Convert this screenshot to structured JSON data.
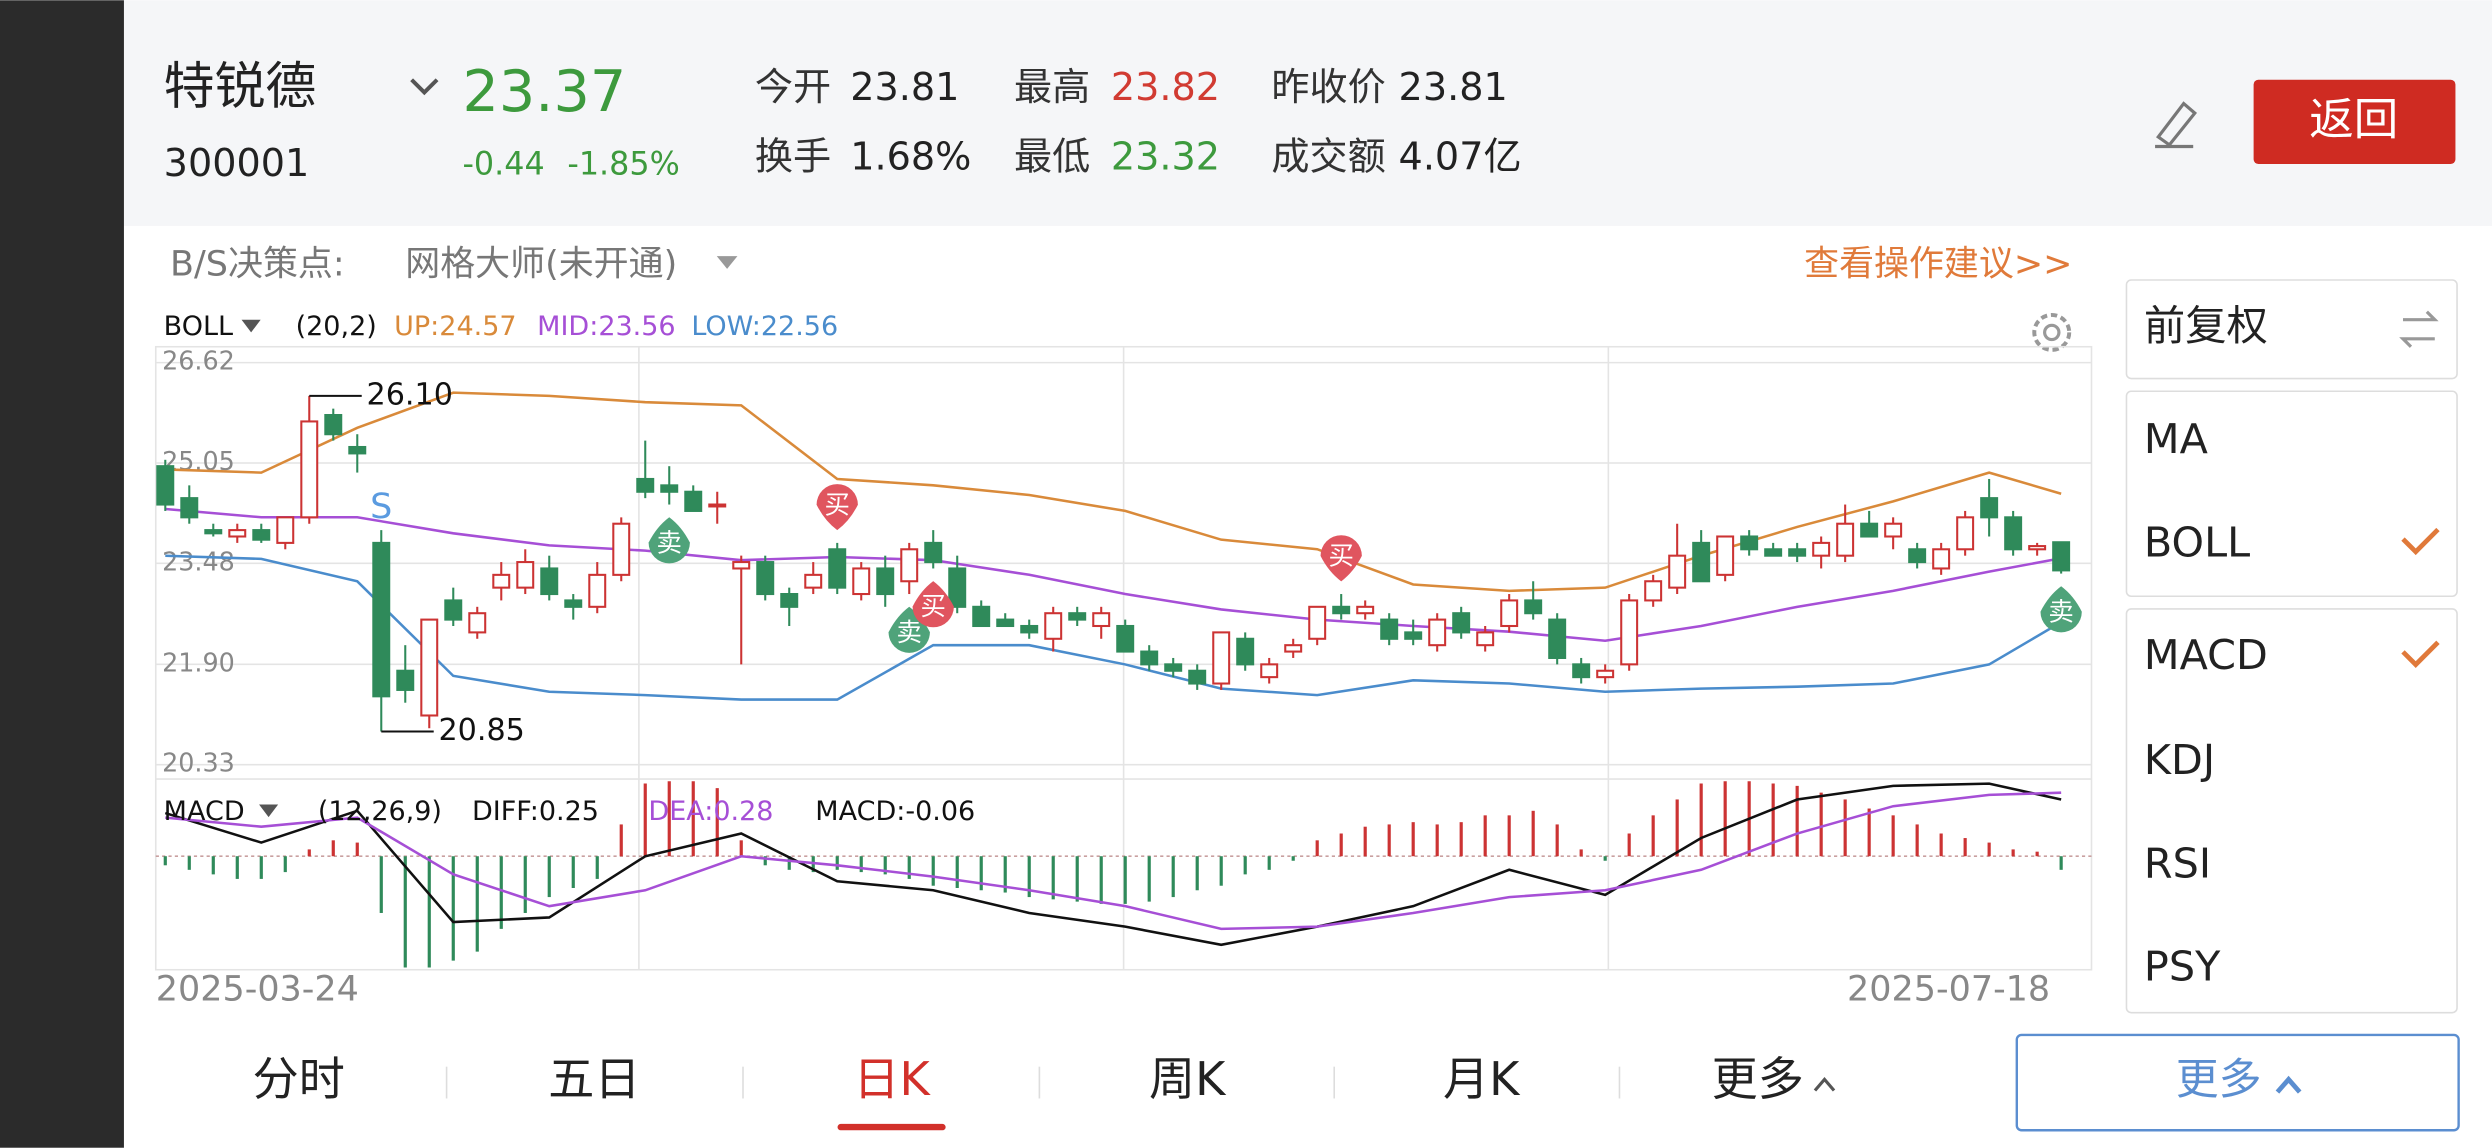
{
  "header": {
    "name": "特锐德",
    "code": "300001",
    "price": "23.37",
    "change": "-0.44",
    "change_pct": "-1.85%",
    "stats": [
      {
        "label": "今开",
        "value": "23.81",
        "color": "#222"
      },
      {
        "label": "换手",
        "value": "1.68%",
        "color": "#222"
      },
      {
        "label": "最高",
        "value": "23.82",
        "color": "#d13b32"
      },
      {
        "label": "最低",
        "value": "23.32",
        "color": "#3d9a3d"
      },
      {
        "label": "昨收价",
        "value": "23.81",
        "color": "#222"
      },
      {
        "label": "成交额",
        "value": "4.07亿",
        "color": "#222"
      }
    ],
    "back": "返回"
  },
  "chart_data": {
    "type": "candlestick",
    "decision_label": "B/S决策点:",
    "grid_master": "网格大师(未开通)",
    "advice": "查看操作建议>>",
    "indicator": {
      "name": "BOLL",
      "params": "(20,2)",
      "up": "UP:24.57",
      "mid": "MID:23.56",
      "low": "LOW:22.56"
    },
    "ylim": [
      20.33,
      26.62
    ],
    "yticks": [
      26.62,
      25.05,
      23.48,
      {
        "value": 21.9,
        "label": "21.90"
      },
      20.33
    ],
    "up_color": "#cc3333",
    "down_color": "#2f8a5a",
    "candles": [
      [
        25.0,
        25.1,
        24.3,
        24.4
      ],
      [
        24.5,
        24.7,
        24.1,
        24.2
      ],
      [
        24.0,
        24.1,
        23.9,
        23.95
      ],
      [
        23.9,
        24.1,
        23.8,
        24.0
      ],
      [
        24.0,
        24.1,
        23.8,
        23.85
      ],
      [
        23.8,
        24.2,
        23.7,
        24.2
      ],
      [
        24.2,
        26.1,
        24.1,
        25.7
      ],
      [
        25.8,
        25.9,
        25.4,
        25.5
      ],
      [
        25.3,
        25.5,
        24.9,
        25.2
      ],
      [
        23.8,
        24.0,
        20.85,
        21.4
      ],
      [
        21.8,
        22.2,
        21.3,
        21.5
      ],
      [
        21.1,
        22.6,
        20.9,
        22.6
      ],
      [
        22.9,
        23.1,
        22.5,
        22.6
      ],
      [
        22.4,
        22.8,
        22.3,
        22.7
      ],
      [
        23.1,
        23.5,
        22.9,
        23.3
      ],
      [
        23.1,
        23.7,
        23.0,
        23.5
      ],
      [
        23.4,
        23.6,
        22.9,
        23.0
      ],
      [
        22.9,
        23.0,
        22.6,
        22.8
      ],
      [
        22.8,
        23.5,
        22.7,
        23.3
      ],
      [
        23.3,
        24.2,
        23.2,
        24.1
      ],
      [
        24.8,
        25.4,
        24.5,
        24.6
      ],
      [
        24.7,
        25.0,
        24.4,
        24.6
      ],
      [
        24.6,
        24.7,
        24.3,
        24.3
      ],
      [
        24.4,
        24.6,
        24.1,
        24.4
      ],
      [
        23.4,
        23.6,
        21.9,
        23.5
      ],
      [
        23.5,
        23.6,
        22.9,
        23.0
      ],
      [
        23.0,
        23.1,
        22.5,
        22.8
      ],
      [
        23.1,
        23.5,
        23.0,
        23.3
      ],
      [
        23.7,
        23.8,
        23.0,
        23.1
      ],
      [
        23.0,
        23.5,
        22.9,
        23.4
      ],
      [
        23.4,
        23.6,
        22.8,
        23.0
      ],
      [
        23.2,
        23.8,
        23.0,
        23.7
      ],
      [
        23.8,
        24.0,
        23.4,
        23.5
      ],
      [
        23.4,
        23.6,
        22.7,
        22.8
      ],
      [
        22.8,
        22.9,
        22.5,
        22.5
      ],
      [
        22.6,
        22.7,
        22.5,
        22.5
      ],
      [
        22.5,
        22.6,
        22.3,
        22.4
      ],
      [
        22.3,
        22.8,
        22.1,
        22.7
      ],
      [
        22.7,
        22.8,
        22.5,
        22.6
      ],
      [
        22.5,
        22.8,
        22.3,
        22.7
      ],
      [
        22.5,
        22.6,
        22.1,
        22.1
      ],
      [
        22.1,
        22.2,
        21.8,
        21.9
      ],
      [
        21.9,
        22.0,
        21.7,
        21.8
      ],
      [
        21.8,
        21.9,
        21.5,
        21.6
      ],
      [
        21.6,
        22.4,
        21.5,
        22.4
      ],
      [
        22.3,
        22.4,
        21.8,
        21.9
      ],
      [
        21.7,
        22.0,
        21.6,
        21.9
      ],
      [
        22.1,
        22.3,
        22.0,
        22.2
      ],
      [
        22.3,
        22.8,
        22.2,
        22.8
      ],
      [
        22.8,
        23.0,
        22.6,
        22.7
      ],
      [
        22.7,
        22.9,
        22.6,
        22.8
      ],
      [
        22.6,
        22.7,
        22.2,
        22.3
      ],
      [
        22.4,
        22.6,
        22.2,
        22.3
      ],
      [
        22.2,
        22.7,
        22.1,
        22.6
      ],
      [
        22.7,
        22.8,
        22.3,
        22.4
      ],
      [
        22.2,
        22.5,
        22.1,
        22.4
      ],
      [
        22.5,
        23.0,
        22.4,
        22.9
      ],
      [
        22.9,
        23.2,
        22.6,
        22.7
      ],
      [
        22.6,
        22.7,
        21.9,
        22.0
      ],
      [
        21.9,
        22.0,
        21.6,
        21.7
      ],
      [
        21.7,
        21.9,
        21.6,
        21.8
      ],
      [
        21.9,
        23.0,
        21.8,
        22.9
      ],
      [
        22.9,
        23.3,
        22.8,
        23.2
      ],
      [
        23.1,
        24.1,
        23.0,
        23.6
      ],
      [
        23.8,
        24.0,
        23.2,
        23.2
      ],
      [
        23.3,
        23.9,
        23.2,
        23.9
      ],
      [
        23.9,
        24.0,
        23.6,
        23.7
      ],
      [
        23.7,
        23.8,
        23.6,
        23.6
      ],
      [
        23.7,
        23.8,
        23.5,
        23.6
      ],
      [
        23.6,
        23.9,
        23.4,
        23.8
      ],
      [
        23.6,
        24.4,
        23.5,
        24.1
      ],
      [
        24.1,
        24.3,
        23.9,
        23.9
      ],
      [
        23.9,
        24.2,
        23.7,
        24.1
      ],
      [
        23.7,
        23.8,
        23.4,
        23.5
      ],
      [
        23.4,
        23.8,
        23.3,
        23.7
      ],
      [
        23.7,
        24.3,
        23.6,
        24.2
      ],
      [
        24.5,
        24.8,
        23.9,
        24.2
      ],
      [
        24.2,
        24.3,
        23.6,
        23.7
      ],
      [
        23.7,
        23.8,
        23.6,
        23.75
      ],
      [
        23.81,
        23.82,
        23.32,
        23.37
      ]
    ],
    "boll": {
      "x": [
        0,
        4,
        8,
        12,
        16,
        20,
        24,
        28,
        32,
        36,
        40,
        44,
        48,
        52,
        56,
        60,
        64,
        68,
        72,
        76,
        79
      ],
      "series": [
        {
          "color": "#d98a3a",
          "values": [
            24.95,
            24.9,
            25.6,
            26.15,
            26.1,
            26.0,
            25.95,
            24.8,
            24.7,
            24.55,
            24.3,
            23.85,
            23.7,
            23.15,
            23.05,
            23.1,
            23.6,
            24.05,
            24.45,
            24.9,
            24.57
          ]
        },
        {
          "color": "#a64fd6",
          "values": [
            24.33,
            24.2,
            24.2,
            23.95,
            23.76,
            23.68,
            23.53,
            23.58,
            23.53,
            23.3,
            23.0,
            22.76,
            22.6,
            22.5,
            22.41,
            22.27,
            22.5,
            22.8,
            23.05,
            23.35,
            23.56
          ]
        },
        {
          "color": "#4a8ccc",
          "values": [
            23.6,
            23.55,
            23.2,
            21.72,
            21.47,
            21.42,
            21.35,
            21.35,
            22.2,
            22.2,
            21.9,
            21.52,
            21.42,
            21.65,
            21.6,
            21.47,
            21.52,
            21.55,
            21.6,
            21.9,
            22.56
          ]
        }
      ]
    },
    "annotations": [
      {
        "text": "26.10",
        "candle": 6,
        "at": "high"
      },
      {
        "text": "20.85",
        "candle": 9,
        "at": "low"
      }
    ],
    "signals": [
      {
        "index": 9,
        "text": "S",
        "color": "#5b9be0",
        "place": "above",
        "badge": false
      },
      {
        "index": 21,
        "text": "卖",
        "color": "#4fa37a",
        "place": "below",
        "badge": true
      },
      {
        "index": 28,
        "text": "买",
        "color": "#e0555f",
        "place": "above",
        "badge": true
      },
      {
        "index": 31,
        "text": "卖",
        "color": "#4fa37a",
        "place": "below",
        "badge": true
      },
      {
        "index": 32,
        "text": "买",
        "color": "#e0555f",
        "place": "below",
        "badge": true
      },
      {
        "index": 49,
        "text": "买",
        "color": "#e0555f",
        "place": "above",
        "badge": true
      },
      {
        "index": 79,
        "text": "卖",
        "color": "#4fa37a",
        "place": "below",
        "badge": true
      }
    ],
    "dates": [
      "2025-03-24",
      "2025-07-18"
    ],
    "macd": {
      "legend": {
        "name": "MACD",
        "params": "(12,26,9)",
        "diff": "DIFF:0.25",
        "dea": "DEA:0.28",
        "macd": "MACD:-0.06"
      },
      "ylim": [
        -0.5,
        0.34
      ],
      "hist": [
        -0.04,
        -0.06,
        -0.08,
        -0.1,
        -0.1,
        -0.07,
        0.03,
        0.07,
        0.06,
        -0.25,
        -0.49,
        -0.49,
        -0.46,
        -0.42,
        -0.32,
        -0.25,
        -0.18,
        -0.14,
        -0.1,
        0.14,
        0.32,
        0.33,
        0.33,
        0.3,
        0.07,
        -0.04,
        -0.06,
        -0.07,
        -0.06,
        -0.07,
        -0.08,
        -0.1,
        -0.13,
        -0.14,
        -0.15,
        -0.16,
        -0.18,
        -0.19,
        -0.2,
        -0.21,
        -0.21,
        -0.2,
        -0.18,
        -0.15,
        -0.13,
        -0.08,
        -0.06,
        -0.02,
        0.07,
        0.1,
        0.13,
        0.14,
        0.15,
        0.14,
        0.15,
        0.18,
        0.18,
        0.2,
        0.14,
        0.03,
        -0.02,
        0.1,
        0.18,
        0.25,
        0.32,
        0.33,
        0.33,
        0.32,
        0.31,
        0.28,
        0.25,
        0.21,
        0.18,
        0.14,
        0.1,
        0.08,
        0.06,
        0.03,
        0.02,
        -0.06
      ],
      "x": [
        0,
        4,
        8,
        12,
        16,
        20,
        24,
        28,
        32,
        36,
        40,
        44,
        48,
        52,
        56,
        60,
        64,
        68,
        72,
        76,
        79
      ],
      "series": [
        {
          "color": "#111111",
          "values": [
            0.19,
            0.06,
            0.2,
            -0.29,
            -0.27,
            0,
            0.1,
            -0.11,
            -0.15,
            -0.25,
            -0.31,
            -0.39,
            -0.31,
            -0.22,
            -0.06,
            -0.17,
            0.08,
            0.25,
            0.31,
            0.32,
            0.25
          ]
        },
        {
          "color": "#a64fd6",
          "values": [
            0.17,
            0.13,
            0.17,
            -0.08,
            -0.22,
            -0.15,
            0,
            -0.04,
            -0.09,
            -0.15,
            -0.22,
            -0.32,
            -0.31,
            -0.25,
            -0.18,
            -0.15,
            -0.06,
            0.1,
            0.22,
            0.27,
            0.28
          ]
        }
      ]
    }
  },
  "side": {
    "adjust": "前复权",
    "main_indicators": [
      {
        "name": "MA",
        "checked": false
      },
      {
        "name": "BOLL",
        "checked": true
      }
    ],
    "sub_indicators": [
      {
        "name": "MACD",
        "checked": true
      },
      {
        "name": "KDJ",
        "checked": false
      },
      {
        "name": "RSI",
        "checked": false
      },
      {
        "name": "PSY",
        "checked": false
      }
    ]
  },
  "tabs": {
    "items": [
      "分时",
      "五日",
      "日K",
      "周K",
      "月K",
      "更多"
    ],
    "active": 2
  },
  "more_button": "更多"
}
